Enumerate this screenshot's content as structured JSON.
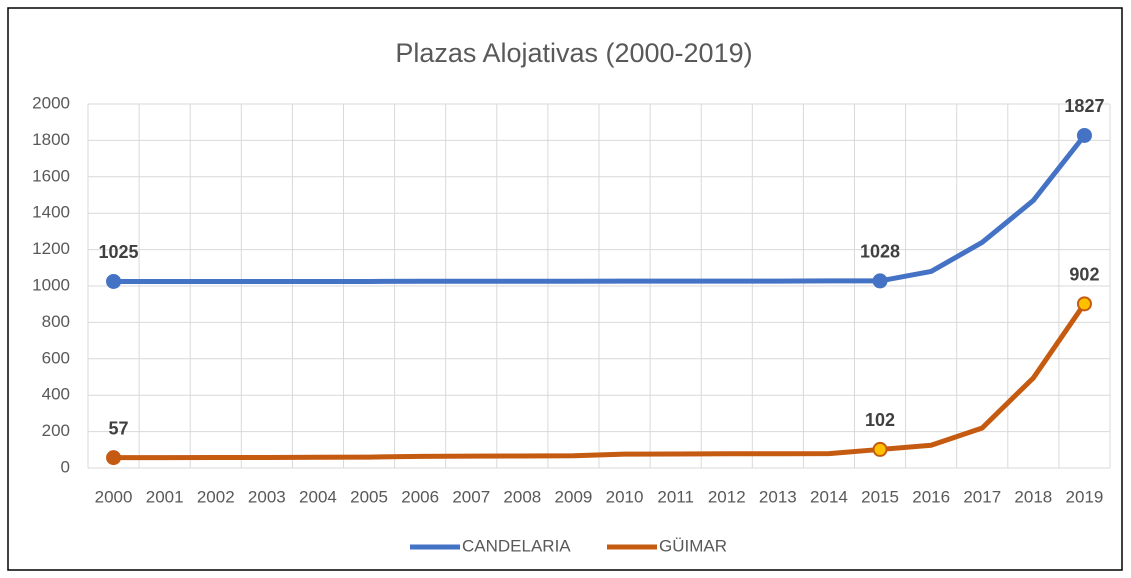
{
  "chart_data": {
    "type": "line",
    "title": "Plazas Alojativas (2000-2019)",
    "categories": [
      "2000",
      "2001",
      "2002",
      "2003",
      "2004",
      "2005",
      "2006",
      "2007",
      "2008",
      "2009",
      "2010",
      "2011",
      "2012",
      "2013",
      "2014",
      "2015",
      "2016",
      "2017",
      "2018",
      "2019"
    ],
    "series": [
      {
        "name": "CANDELARIA",
        "color": "#4472c4",
        "values": [
          1025,
          1025,
          1025,
          1025,
          1025,
          1025,
          1026,
          1026,
          1026,
          1026,
          1027,
          1027,
          1027,
          1027,
          1028,
          1028,
          1080,
          1240,
          1470,
          1827
        ]
      },
      {
        "name": "GÜIMAR",
        "color": "#c55a11",
        "values": [
          57,
          57,
          58,
          58,
          59,
          60,
          64,
          65,
          66,
          67,
          76,
          77,
          78,
          78,
          79,
          102,
          125,
          220,
          495,
          902
        ]
      }
    ],
    "ylim": [
      0,
      2000
    ],
    "yticks": [
      0,
      200,
      400,
      600,
      800,
      1000,
      1200,
      1400,
      1600,
      1800,
      2000
    ],
    "grid": true,
    "legend": "bottom"
  }
}
